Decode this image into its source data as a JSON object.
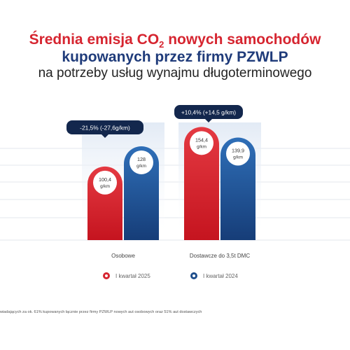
{
  "header": {
    "line1": "Średnia emisja CO",
    "line1_sub": "2",
    "line1_end": " nowych samochodów",
    "line2": "kupowanych przez firmy PZWLP",
    "line3": "na potrzeby usług wynajmu długoterminowego"
  },
  "colors": {
    "red": "#d62530",
    "blue": "#1f4e8c",
    "navy": "#13274d"
  },
  "chart_data": {
    "type": "bar",
    "categories": [
      "Osobowe",
      "Dostawcze do 3,5t DMC"
    ],
    "series": [
      {
        "name": "I kwartał 2025",
        "values": [
          100.4,
          154.4
        ],
        "labels": [
          "100,4",
          "154,4"
        ]
      },
      {
        "name": "I kwartał 2024",
        "values": [
          128,
          139.9
        ],
        "labels": [
          "128",
          "139,9"
        ]
      }
    ],
    "unit": "g/km",
    "change_labels": [
      "-21,5% (-27,6g/km)",
      "+10,4% (+14,5 g/km)"
    ],
    "grid": true,
    "ylim": [
      0,
      170
    ]
  },
  "legend": {
    "items": [
      "I kwartał 2025",
      "I kwartał 2024"
    ]
  },
  "footnote": "wiadających za ok. 61% kupowanych łącznie przez firmy PZWLP nowych aut osobowych oraz 51% aut dostawczych"
}
